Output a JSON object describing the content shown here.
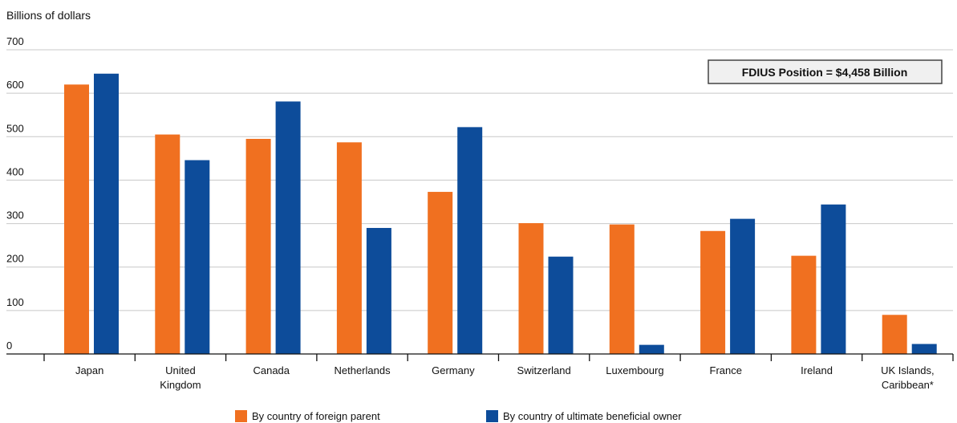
{
  "chart_data": {
    "type": "bar",
    "ylabel": "Billions of dollars",
    "ylim": [
      0,
      700
    ],
    "yticks": [
      0,
      100,
      200,
      300,
      400,
      500,
      600,
      700
    ],
    "grid": true,
    "legend_position": "bottom",
    "callout": "FDIUS Position = $4,458 Billion",
    "categories": [
      "Japan",
      "United\nKingdom",
      "Canada",
      "Netherlands",
      "Germany",
      "Switzerland",
      "Luxembourg",
      "France",
      "Ireland",
      "UK Islands,\nCaribbean*"
    ],
    "series": [
      {
        "name": "By country of foreign parent",
        "color": "#f07020",
        "values": [
          620,
          505,
          495,
          487,
          373,
          301,
          298,
          283,
          226,
          90
        ]
      },
      {
        "name": "By country of ultimate beneficial owner",
        "color": "#0d4c9a",
        "values": [
          645,
          446,
          581,
          290,
          522,
          224,
          21,
          311,
          344,
          23
        ]
      }
    ]
  }
}
